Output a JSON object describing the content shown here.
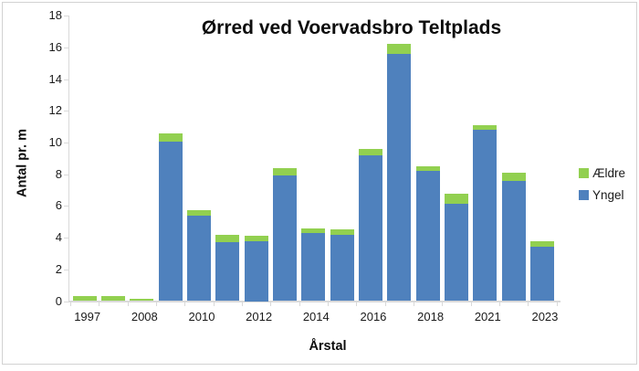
{
  "chart_data": {
    "type": "bar",
    "stacked": true,
    "title": "Ørred ved Voervadsbro Teltplads",
    "xlabel": "Årstal",
    "ylabel": "Antal pr. m",
    "ylim": [
      0,
      18
    ],
    "ytick_step": 2,
    "grid": false,
    "legend_position": "right",
    "category_labels": [
      "1997",
      "",
      "2008",
      "",
      "2010",
      "",
      "2012",
      "",
      "2014",
      "",
      "2016",
      "",
      "2018",
      "",
      "2021",
      "",
      "2023"
    ],
    "x_tick_labels_shown": [
      "1997",
      "2008",
      "2010",
      "2012",
      "2014",
      "2016",
      "2018",
      "2021",
      "2023"
    ],
    "series": [
      {
        "name": "Yngel",
        "color": "#4f81bd",
        "values": [
          0,
          0,
          0,
          10.05,
          5.4,
          3.7,
          3.75,
          7.95,
          4.3,
          4.2,
          9.2,
          15.6,
          8.2,
          6.15,
          10.8,
          7.6,
          3.45
        ]
      },
      {
        "name": "Ældre",
        "color": "#92d050",
        "values": [
          0.3,
          0.3,
          0.15,
          0.5,
          0.35,
          0.45,
          0.35,
          0.45,
          0.3,
          0.35,
          0.4,
          0.65,
          0.3,
          0.6,
          0.3,
          0.5,
          0.3
        ]
      }
    ],
    "colors": {
      "axis_line": "#d9d9d9",
      "chart_border": "#d2d2d2",
      "text": "#0d0d0d"
    }
  }
}
